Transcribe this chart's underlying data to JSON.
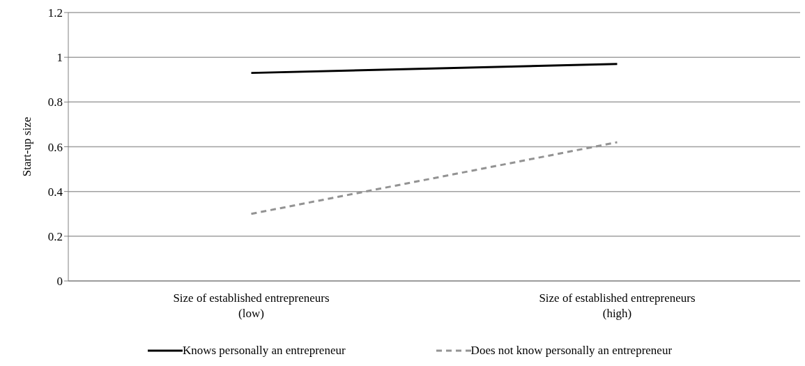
{
  "chart_data": {
    "type": "line",
    "ylabel": "Start-up size",
    "categories": [
      "Size of established entrepreneurs\n(low)",
      "Size of established entrepreneurs\n(high)"
    ],
    "series": [
      {
        "name": "Knows personally an entrepreneur",
        "color": "#000000",
        "line_style": "solid",
        "values": [
          0.93,
          0.97
        ]
      },
      {
        "name": "Does not know personally an entrepreneur",
        "color": "#939393",
        "line_style": "dashed",
        "values": [
          0.3,
          0.62
        ]
      }
    ],
    "ylim": [
      0,
      1.2
    ],
    "yticks": [
      0,
      0.2,
      0.4,
      0.6,
      0.8,
      1,
      1.2
    ],
    "grid": "y",
    "legend": "bottom",
    "marker": "none"
  }
}
